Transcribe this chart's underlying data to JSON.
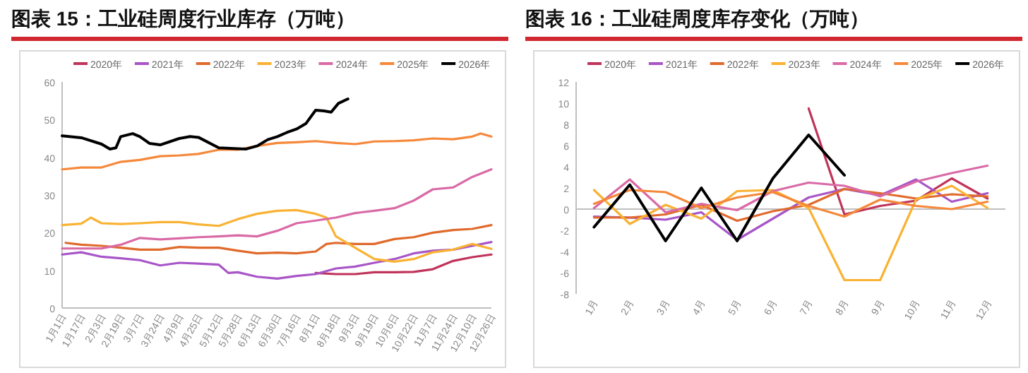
{
  "chart_data": [
    {
      "type": "line",
      "title": "图表 15：工业硅周度行业库存（万吨）",
      "legend": "top",
      "xlim": [
        "--01-01",
        "--12-26"
      ],
      "xticks": [
        {
          "value": "--01-01",
          "label": "1月1日"
        },
        {
          "value": "--01-17",
          "label": "1月17日"
        },
        {
          "value": "--02-03",
          "label": "2月3日"
        },
        {
          "value": "--02-19",
          "label": "2月19日"
        },
        {
          "value": "--03-07",
          "label": "3月7日"
        },
        {
          "value": "--03-24",
          "label": "3月24日"
        },
        {
          "value": "--04-09",
          "label": "4月9日"
        },
        {
          "value": "--04-25",
          "label": "4月25日"
        },
        {
          "value": "--05-12",
          "label": "5月12日"
        },
        {
          "value": "--05-28",
          "label": "5月28日"
        },
        {
          "value": "--06-13",
          "label": "6月13日"
        },
        {
          "value": "--06-30",
          "label": "6月30日"
        },
        {
          "value": "--07-16",
          "label": "7月16日"
        },
        {
          "value": "--08-01",
          "label": "8月1日"
        },
        {
          "value": "--08-18",
          "label": "8月18日"
        },
        {
          "value": "--09-03",
          "label": "9月3日"
        },
        {
          "value": "--09-19",
          "label": "9月19日"
        },
        {
          "value": "--10-06",
          "label": "10月6日"
        },
        {
          "value": "--10-22",
          "label": "10月22日"
        },
        {
          "value": "--11-07",
          "label": "11月7日"
        },
        {
          "value": "--11-24",
          "label": "11月24日"
        },
        {
          "value": "--12-10",
          "label": "12月10日"
        },
        {
          "value": "--12-26",
          "label": "12月26日"
        }
      ],
      "ylim": [
        0,
        60
      ],
      "yticks": [
        0,
        10,
        20,
        30,
        40,
        50,
        60
      ],
      "series": [
        {
          "name": "2020年",
          "color": "#c0335a",
          "x": [
            "--08-01",
            "--08-18",
            "--09-03",
            "--09-19",
            "--10-06",
            "--10-22",
            "--11-07",
            "--11-24",
            "--12-10",
            "--12-26"
          ],
          "values": [
            9.3,
            9,
            9,
            9.5,
            9.5,
            9.6,
            10.3,
            12.5,
            13.5,
            14.2
          ]
        },
        {
          "name": "2021年",
          "color": "#a855c8",
          "x": [
            "--01-01",
            "--01-17",
            "--02-03",
            "--02-19",
            "--03-07",
            "--03-24",
            "--04-09",
            "--04-25",
            "--05-12",
            "--05-20",
            "--05-28",
            "--06-13",
            "--06-30",
            "--07-16",
            "--08-01",
            "--08-18",
            "--09-03",
            "--09-19",
            "--10-06",
            "--10-22",
            "--11-07",
            "--11-24",
            "--12-10",
            "--12-26"
          ],
          "values": [
            14.2,
            14.8,
            13.6,
            13.2,
            12.7,
            11.3,
            12,
            11.8,
            11.5,
            9.3,
            9.5,
            8.3,
            7.8,
            8.5,
            9,
            10.5,
            11,
            12,
            13,
            14.5,
            15.2,
            15.5,
            16.5,
            17.5
          ]
        },
        {
          "name": "2022年",
          "color": "#e06a2c",
          "x": [
            "--01-04",
            "--01-17",
            "--02-03",
            "--02-19",
            "--03-07",
            "--03-24",
            "--04-09",
            "--04-25",
            "--05-12",
            "--05-28",
            "--06-13",
            "--06-30",
            "--07-16",
            "--08-01",
            "--08-10",
            "--08-18",
            "--09-03",
            "--09-19",
            "--10-06",
            "--10-22",
            "--11-07",
            "--11-24",
            "--12-10",
            "--12-26"
          ],
          "values": [
            17.3,
            16.8,
            16.5,
            16,
            15.5,
            15.5,
            16.2,
            16,
            16,
            15.2,
            14.5,
            14.7,
            14.5,
            15,
            17,
            17.3,
            17,
            17,
            18.3,
            18.8,
            20,
            20.7,
            21,
            22
          ]
        },
        {
          "name": "2023年",
          "color": "#f9b233",
          "x": [
            "--01-01",
            "--01-17",
            "--01-25",
            "--02-03",
            "--02-19",
            "--03-07",
            "--03-24",
            "--04-09",
            "--04-25",
            "--05-12",
            "--05-28",
            "--06-13",
            "--06-30",
            "--07-16",
            "--08-01",
            "--08-10",
            "--08-18",
            "--09-03",
            "--09-19",
            "--10-06",
            "--10-22",
            "--11-07",
            "--11-24",
            "--12-10",
            "--12-26"
          ],
          "values": [
            22,
            22.4,
            24,
            22.5,
            22.3,
            22.5,
            22.8,
            22.8,
            22.2,
            21.8,
            23.6,
            25,
            25.8,
            26,
            25,
            24,
            19,
            16,
            13,
            12.3,
            13,
            14.8,
            15.5,
            17,
            15.7
          ]
        },
        {
          "name": "2024年",
          "color": "#d96aa6",
          "x": [
            "--01-01",
            "--01-17",
            "--02-03",
            "--02-19",
            "--03-07",
            "--03-24",
            "--04-09",
            "--04-25",
            "--05-12",
            "--05-28",
            "--06-13",
            "--06-30",
            "--07-16",
            "--08-01",
            "--08-18",
            "--09-03",
            "--09-19",
            "--10-06",
            "--10-22",
            "--11-07",
            "--11-24",
            "--12-10",
            "--12-26"
          ],
          "values": [
            15.8,
            15.8,
            15.8,
            16.8,
            18.6,
            18.2,
            18.5,
            18.8,
            19,
            19.3,
            19,
            20.5,
            22.5,
            23.2,
            24,
            25.2,
            25.8,
            26.5,
            28.5,
            31.5,
            32,
            34.8,
            36.8
          ]
        },
        {
          "name": "2025年",
          "color": "#f5883a",
          "x": [
            "--01-01",
            "--01-17",
            "--02-03",
            "--02-19",
            "--03-07",
            "--03-24",
            "--04-09",
            "--04-25",
            "--05-12",
            "--05-28",
            "--06-13",
            "--06-30",
            "--07-16",
            "--08-01",
            "--08-18",
            "--09-03",
            "--09-19",
            "--10-06",
            "--10-22",
            "--11-07",
            "--11-24",
            "--12-10",
            "--12-17",
            "--12-26"
          ],
          "values": [
            36.8,
            37.3,
            37.3,
            38.8,
            39.3,
            40.3,
            40.5,
            40.9,
            42,
            42,
            43,
            43.8,
            44,
            44.3,
            43.8,
            43.5,
            44.2,
            44.3,
            44.5,
            45,
            44.8,
            45.5,
            46.3,
            45.5
          ]
        },
        {
          "name": "2026年",
          "color": "#000000",
          "x": [
            "--01-01",
            "--01-17",
            "--02-03",
            "--02-10",
            "--02-15",
            "--02-19",
            "--03-01",
            "--03-07",
            "--03-15",
            "--03-24",
            "--04-09",
            "--04-18",
            "--04-25",
            "--05-12",
            "--05-28",
            "--06-04",
            "--06-13",
            "--06-22",
            "--06-30",
            "--07-08",
            "--07-16",
            "--07-24",
            "--08-01",
            "--08-08",
            "--08-14",
            "--08-20",
            "--08-28"
          ],
          "values": [
            45.7,
            45.2,
            43.5,
            42.2,
            42.5,
            45.5,
            46.3,
            45.5,
            43.7,
            43.3,
            45,
            45.5,
            45.3,
            42.5,
            42.3,
            42.2,
            43,
            44.7,
            45.5,
            46.6,
            47.5,
            49,
            52.5,
            52.3,
            52,
            54.3,
            55.5
          ]
        }
      ]
    },
    {
      "type": "line",
      "title": "图表 16：工业硅周度库存变化（万吨）",
      "legend": "top",
      "categories": [
        "1月",
        "2月",
        "3月",
        "4月",
        "5月",
        "6月",
        "7月",
        "8月",
        "9月",
        "10月",
        "11月",
        "12月"
      ],
      "ylim": [
        -8,
        12
      ],
      "yticks": [
        -8,
        -6,
        -4,
        -2,
        0,
        2,
        4,
        6,
        8,
        10,
        12
      ],
      "series": [
        {
          "name": "2020年",
          "color": "#c0335a",
          "values": [
            null,
            null,
            null,
            null,
            null,
            null,
            9.5,
            -0.5,
            0.3,
            0.8,
            2.9,
            1.0
          ]
        },
        {
          "name": "2021年",
          "color": "#a855c8",
          "values": [
            -0.7,
            -0.8,
            -1.0,
            -0.3,
            -2.9,
            -0.9,
            1.1,
            1.9,
            1.3,
            2.8,
            0.7,
            1.5
          ]
        },
        {
          "name": "2022年",
          "color": "#e06a2c",
          "values": [
            -0.8,
            -0.8,
            -0.5,
            0.4,
            -1.1,
            -0.2,
            0.4,
            1.9,
            1.5,
            1.0,
            1.4,
            1.2
          ]
        },
        {
          "name": "2023年",
          "color": "#f9b233",
          "values": [
            1.8,
            -1.4,
            0.4,
            -0.9,
            1.7,
            1.8,
            0.1,
            -6.7,
            -6.7,
            0.9,
            2.2,
            0.1
          ]
        },
        {
          "name": "2024年",
          "color": "#d96aa6",
          "values": [
            0.1,
            2.8,
            -0.3,
            0.5,
            -0.1,
            1.7,
            2.5,
            2.2,
            1.2,
            2.6,
            3.4,
            4.1
          ]
        },
        {
          "name": "2025年",
          "color": "#f5883a",
          "values": [
            0.5,
            1.8,
            1.6,
            0.1,
            1.1,
            1.6,
            0.3,
            -0.7,
            0.9,
            0.3,
            0.0,
            0.7
          ]
        },
        {
          "name": "2026年",
          "color": "#000000",
          "values": [
            -1.7,
            2.3,
            -3.0,
            2.0,
            -3.0,
            2.9,
            7.0,
            3.2,
            null,
            null,
            null,
            null
          ]
        }
      ]
    }
  ]
}
